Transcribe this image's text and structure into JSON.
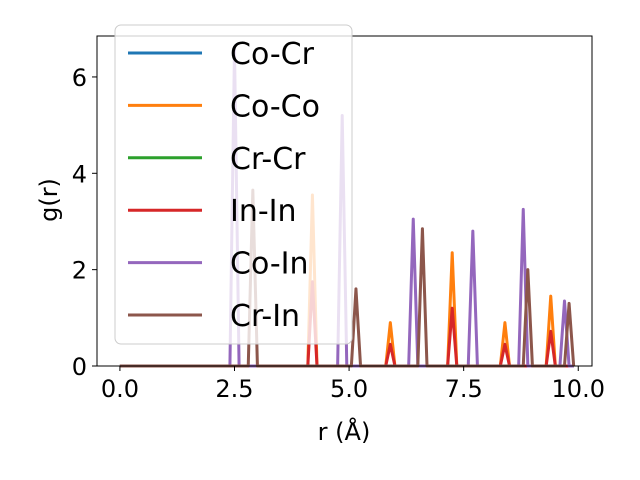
{
  "chart_data": {
    "type": "line",
    "title": "",
    "xlabel": "r (Å)",
    "ylabel": "g(r)",
    "xlim": [
      -0.5,
      10.3
    ],
    "ylim": [
      0,
      6.85
    ],
    "xticks": [
      0.0,
      2.5,
      5.0,
      7.5,
      10.0
    ],
    "xtick_labels": [
      "0.0",
      "2.5",
      "5.0",
      "7.5",
      "10.0"
    ],
    "yticks": [
      0,
      2,
      4,
      6
    ],
    "ytick_labels": [
      "0",
      "2",
      "4",
      "6"
    ],
    "grid": false,
    "legend_position": "upper-left",
    "x_range": [
      0.0,
      9.9
    ],
    "peak_width": 0.1,
    "series": [
      {
        "name": "Co-Cr",
        "color": "#1f77b4",
        "peaks": []
      },
      {
        "name": "Co-Co",
        "color": "#ff7f0e",
        "peaks": [
          [
            4.2,
            3.55
          ],
          [
            5.9,
            0.9
          ],
          [
            7.25,
            2.35
          ],
          [
            8.4,
            0.9
          ],
          [
            9.4,
            1.45
          ]
        ]
      },
      {
        "name": "Cr-Cr",
        "color": "#2ca02c",
        "peaks": []
      },
      {
        "name": "In-In",
        "color": "#d62728",
        "peaks": [
          [
            4.2,
            1.75
          ],
          [
            5.9,
            0.45
          ],
          [
            7.25,
            1.2
          ],
          [
            8.4,
            0.45
          ],
          [
            9.4,
            0.72
          ]
        ]
      },
      {
        "name": "Co-In",
        "color": "#9467bd",
        "peaks": [
          [
            2.5,
            6.6
          ],
          [
            4.85,
            5.2
          ],
          [
            6.4,
            3.05
          ],
          [
            7.7,
            2.8
          ],
          [
            8.8,
            3.25
          ],
          [
            9.7,
            1.35
          ]
        ]
      },
      {
        "name": "Cr-In",
        "color": "#8c564b",
        "peaks": [
          [
            2.9,
            3.65
          ],
          [
            5.15,
            1.6
          ],
          [
            6.6,
            2.85
          ],
          [
            8.9,
            2.0
          ],
          [
            9.8,
            1.3
          ]
        ]
      }
    ]
  }
}
